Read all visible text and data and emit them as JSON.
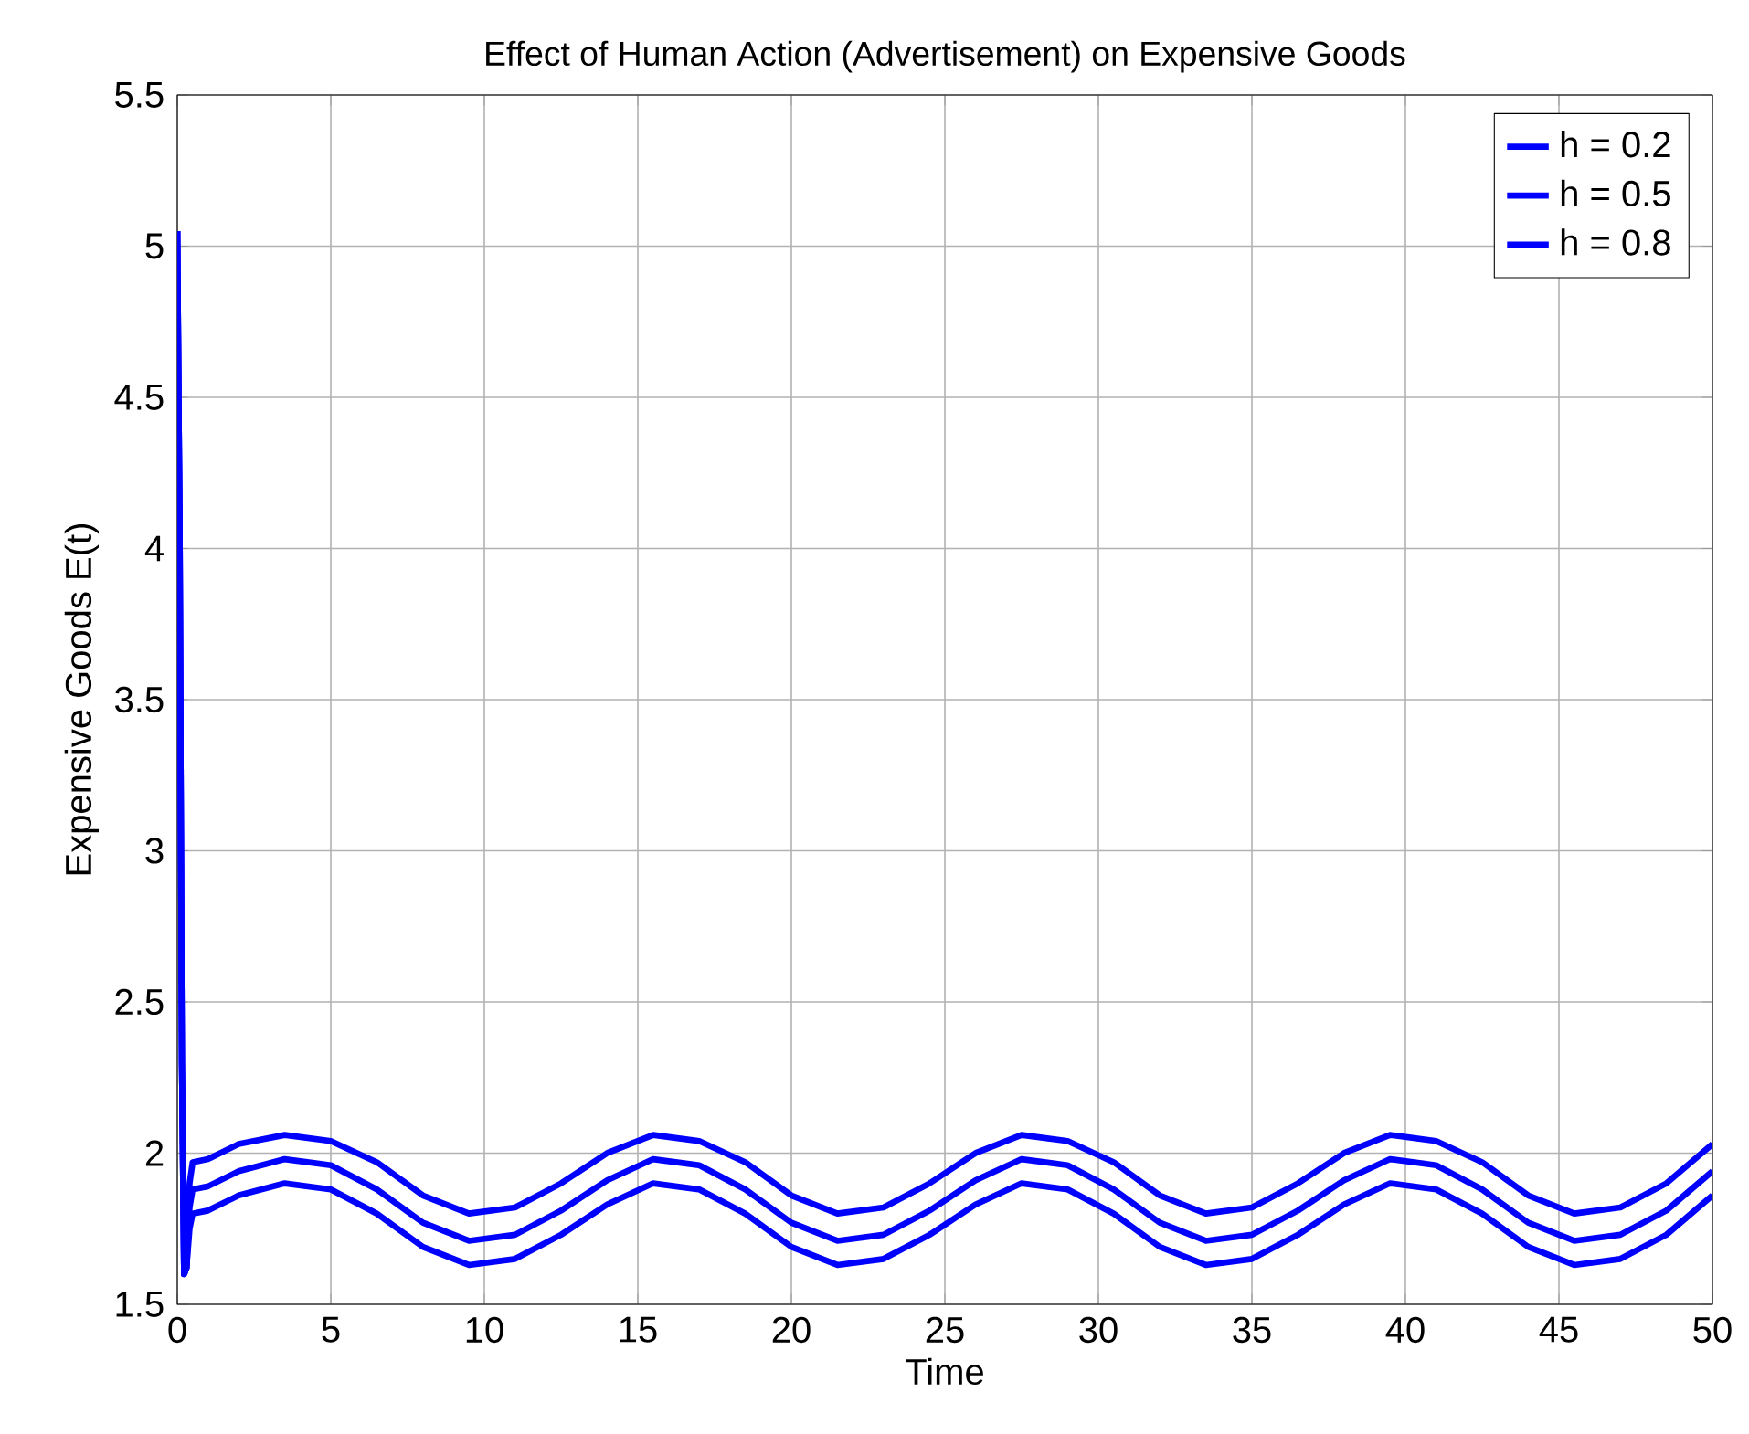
{
  "chart_data": {
    "type": "line",
    "title": "Effect of Human Action (Advertisement) on Expensive Goods",
    "xlabel": "Time",
    "ylabel": "Expensive Goods E(t)",
    "xlim": [
      0,
      50
    ],
    "ylim": [
      1.5,
      5.5
    ],
    "xticks": [
      0,
      5,
      10,
      15,
      20,
      25,
      30,
      35,
      40,
      45,
      50
    ],
    "yticks": [
      1.5,
      2,
      2.5,
      3,
      3.5,
      4,
      4.5,
      5,
      5.5
    ],
    "grid": true,
    "legend": "top right",
    "line_style": "solid",
    "marker": "none",
    "series": [
      {
        "name": "h = 0.2",
        "color": "#0000ff",
        "x": [
          0,
          0.08,
          0.15,
          0.22,
          0.3,
          0.4,
          0.5,
          1,
          2,
          3.5,
          5,
          6.5,
          8,
          9.5,
          11,
          12.5,
          14,
          15.5,
          17,
          18.5,
          20,
          21.5,
          23,
          24.5,
          26,
          27.5,
          29,
          30.5,
          32,
          33.5,
          35,
          36.5,
          38,
          39.5,
          41,
          42.5,
          44,
          45.5,
          47,
          48.5,
          50
        ],
        "values": [
          5.05,
          4.0,
          2.3,
          1.6,
          1.62,
          1.9,
          1.97,
          1.98,
          2.03,
          2.06,
          2.04,
          1.97,
          1.86,
          1.8,
          1.82,
          1.9,
          2.0,
          2.06,
          2.04,
          1.97,
          1.86,
          1.8,
          1.82,
          1.9,
          2.0,
          2.06,
          2.04,
          1.97,
          1.86,
          1.8,
          1.82,
          1.9,
          2.0,
          2.06,
          2.04,
          1.97,
          1.86,
          1.8,
          1.82,
          1.9,
          2.03
        ]
      },
      {
        "name": "h = 0.5",
        "color": "#0000ff",
        "x": [
          0,
          0.08,
          0.15,
          0.22,
          0.3,
          0.4,
          0.5,
          1,
          2,
          3.5,
          5,
          6.5,
          8,
          9.5,
          11,
          12.5,
          14,
          15.5,
          17,
          18.5,
          20,
          21.5,
          23,
          24.5,
          26,
          27.5,
          29,
          30.5,
          32,
          33.5,
          35,
          36.5,
          38,
          39.5,
          41,
          42.5,
          44,
          45.5,
          47,
          48.5,
          50
        ],
        "values": [
          5.05,
          4.0,
          2.3,
          1.6,
          1.62,
          1.82,
          1.88,
          1.89,
          1.94,
          1.98,
          1.96,
          1.88,
          1.77,
          1.71,
          1.73,
          1.81,
          1.91,
          1.98,
          1.96,
          1.88,
          1.77,
          1.71,
          1.73,
          1.81,
          1.91,
          1.98,
          1.96,
          1.88,
          1.77,
          1.71,
          1.73,
          1.81,
          1.91,
          1.98,
          1.96,
          1.88,
          1.77,
          1.71,
          1.73,
          1.81,
          1.94
        ]
      },
      {
        "name": "h = 0.8",
        "color": "#0000ff",
        "x": [
          0,
          0.08,
          0.15,
          0.22,
          0.3,
          0.4,
          0.5,
          1,
          2,
          3.5,
          5,
          6.5,
          8,
          9.5,
          11,
          12.5,
          14,
          15.5,
          17,
          18.5,
          20,
          21.5,
          23,
          24.5,
          26,
          27.5,
          29,
          30.5,
          32,
          33.5,
          35,
          36.5,
          38,
          39.5,
          41,
          42.5,
          44,
          45.5,
          47,
          48.5,
          50
        ],
        "values": [
          5.05,
          4.0,
          2.3,
          1.6,
          1.62,
          1.75,
          1.8,
          1.81,
          1.86,
          1.9,
          1.88,
          1.8,
          1.69,
          1.63,
          1.65,
          1.73,
          1.83,
          1.9,
          1.88,
          1.8,
          1.69,
          1.63,
          1.65,
          1.73,
          1.83,
          1.9,
          1.88,
          1.8,
          1.69,
          1.63,
          1.65,
          1.73,
          1.83,
          1.9,
          1.88,
          1.8,
          1.69,
          1.63,
          1.65,
          1.73,
          1.86
        ]
      }
    ]
  }
}
